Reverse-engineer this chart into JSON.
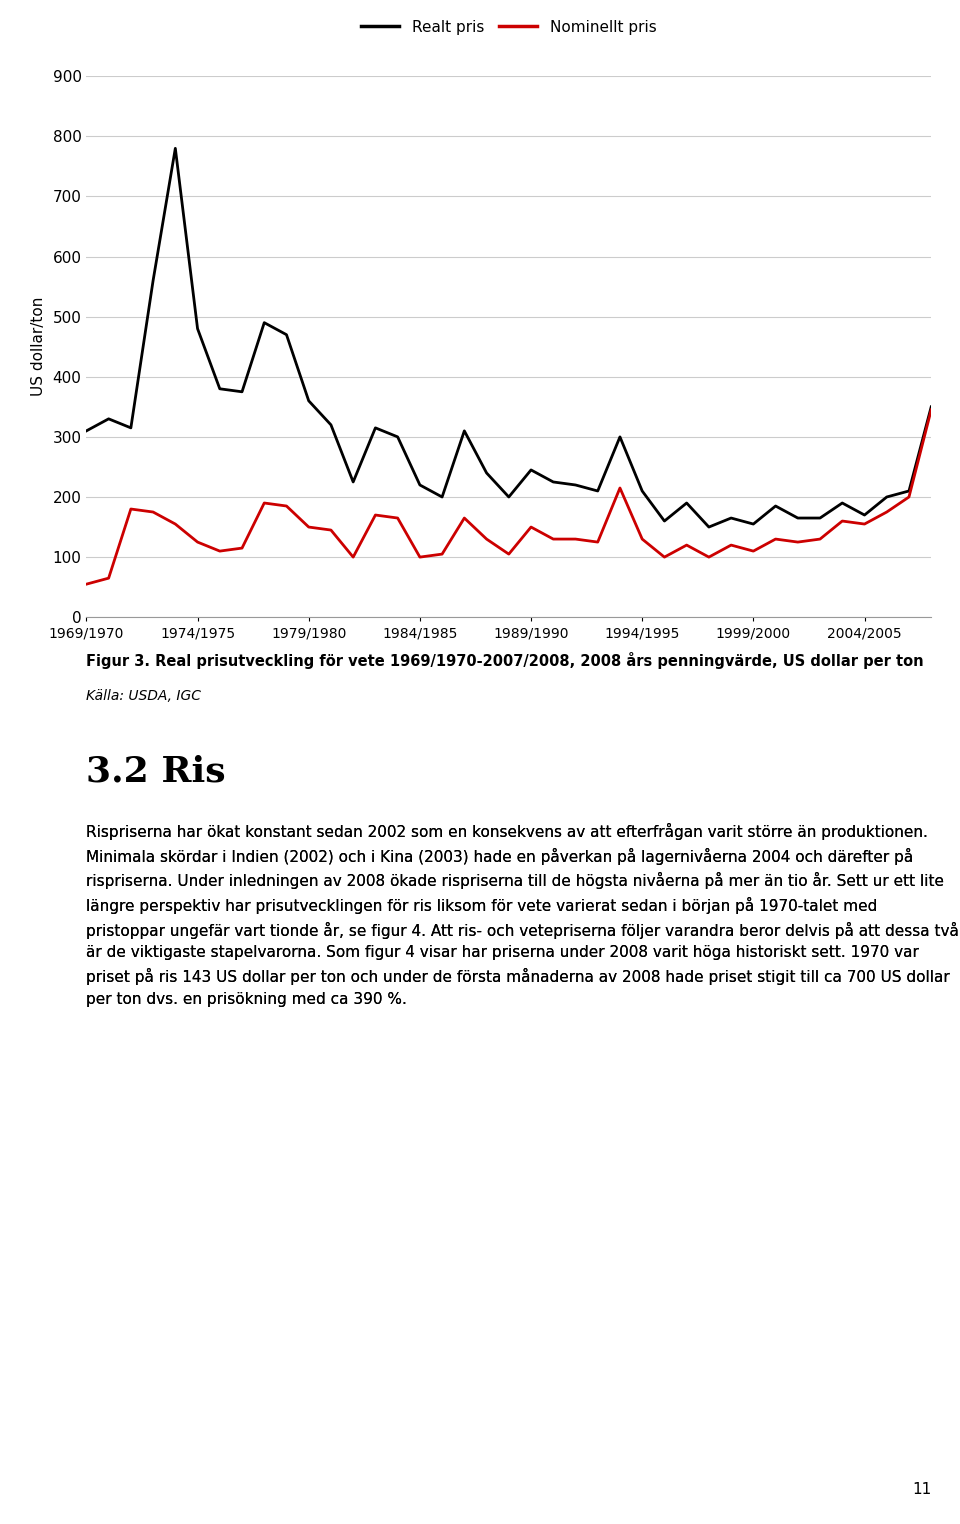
{
  "x_labels": [
    "1969/1970",
    "1974/1975",
    "1979/1980",
    "1984/1985",
    "1989/1990",
    "1994/1995",
    "1999/2000",
    "2004/2005"
  ],
  "real_x": [
    0,
    1,
    2,
    3,
    4,
    5,
    6,
    7,
    8,
    9,
    10,
    11,
    12,
    13,
    14,
    15,
    16,
    17,
    18,
    19,
    20,
    21,
    22,
    23,
    24,
    25,
    26,
    27,
    28,
    29,
    30,
    31,
    32,
    33,
    34,
    35,
    36,
    37,
    38
  ],
  "real_y": [
    310,
    330,
    315,
    560,
    780,
    480,
    380,
    375,
    490,
    470,
    360,
    320,
    225,
    315,
    300,
    220,
    200,
    310,
    240,
    200,
    245,
    225,
    220,
    210,
    300,
    210,
    160,
    190,
    150,
    165,
    155,
    185,
    165,
    165,
    190,
    170,
    200,
    210,
    350
  ],
  "nominal_x": [
    0,
    1,
    2,
    3,
    4,
    5,
    6,
    7,
    8,
    9,
    10,
    11,
    12,
    13,
    14,
    15,
    16,
    17,
    18,
    19,
    20,
    21,
    22,
    23,
    24,
    25,
    26,
    27,
    28,
    29,
    30,
    31,
    32,
    33,
    34,
    35,
    36,
    37,
    38
  ],
  "nominal_y": [
    55,
    65,
    180,
    175,
    155,
    125,
    110,
    115,
    190,
    185,
    150,
    145,
    100,
    170,
    165,
    100,
    105,
    165,
    130,
    105,
    150,
    130,
    130,
    125,
    215,
    130,
    100,
    120,
    100,
    120,
    110,
    130,
    125,
    130,
    160,
    155,
    175,
    200,
    345
  ],
  "ylim": [
    0,
    900
  ],
  "yticks": [
    0,
    100,
    200,
    300,
    400,
    500,
    600,
    700,
    800,
    900
  ],
  "real_color": "#000000",
  "nominal_color": "#cc0000",
  "real_label": "Realt pris",
  "nominal_label": "Nominellt pris",
  "ylabel": "US dollar/ton",
  "fig_caption_bold": "Figur 3. Real prisutveckling för vete 1969/1970-2007/2008, 2008 års penningvärde, US dollar per ton",
  "source": "Källa: USDA, IGC",
  "section_title": "3.2 Ris",
  "body_text": "Rispriserna har ökat konstant sedan 2002 som en konsekvens av att efterfrågan varit större än produktionen. Minimala skördar i Indien (2002) och i Kina (2003) hade en påverkan på lagernivåerna 2004 och därefter på rispriserna. Under inledningen av 2008 ökade rispriserna till de högsta nivåerna på mer än tio år. Sett ur ett lite längre perspektiv har prisutvecklingen för ris liksom för vete varierat sedan i början på 1970-talet med pristoppar ungefär vart tionde år, se figur 4. Att ris- och vetepriserna följer varandra beror delvis på att dessa två är de viktigaste stapelvarorna. Som figur 4 visar har priserna under 2008 varit höga historiskt sett. 1970 var priset på ris 143 US dollar per ton och under de första månaderna av 2008 hade priset stigit till ca 700 US dollar per ton dvs. en prisökning med ca 390 %.",
  "page_number": "11",
  "line_width": 2.0,
  "background_color": "#ffffff"
}
